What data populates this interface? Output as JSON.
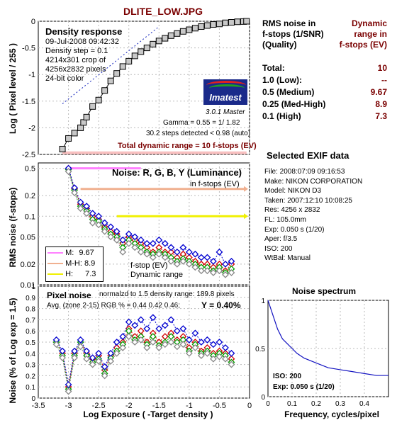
{
  "title": "DLITE_LOW.JPG",
  "colors": {
    "title": "#7a0000",
    "marker_gray": "#808080",
    "red": "#d00000",
    "green": "#00a000",
    "blue": "#0000d0",
    "pink": "#ff80ff",
    "peach": "#f0b090",
    "yellow": "#f0f000",
    "spectrum": "#1010c0"
  },
  "density": {
    "box_title": "Density response",
    "info_lines": [
      "09-Jul-2008 09:42:32",
      "Density step = 0.1",
      "4214x301 crop of",
      "4256x2832 pixels",
      "24-bit color"
    ],
    "logo_text": "Imatest",
    "version": "3.0.1  Master",
    "gamma": "Gamma = 0.55 = 1/ 1.82",
    "steps": "30.2 steps detected < 0.98 (auto)",
    "total_range": "Total dynamic range = 10 f-stops (EV)",
    "ylabel": "Log ( Pixel level / 255 )",
    "yticks": [
      "0",
      "-0.5",
      "-1",
      "-1.5",
      "-2",
      "-2.5"
    ]
  },
  "noise_fstops": {
    "box_title": "Noise: R, G, B, Y (Luminance)",
    "sub": "in f-stops (EV)",
    "ylabel": "RMS noise (f-stops)",
    "yticks": [
      "0.5",
      "0.2",
      "0.1",
      "0.05",
      "0.02",
      "0.01"
    ],
    "legend": [
      {
        "label": "M:",
        "value": "9.67"
      },
      {
        "label": "M-H:",
        "value": "8.9"
      },
      {
        "label": "H:",
        "value": "7.3"
      }
    ],
    "annot_1": "f-stop (EV)",
    "annot_2": "Dynamic range"
  },
  "pixel_noise": {
    "box_title": "Pixel noise",
    "norm": "normalzd to 1.5 density range: 189.8 pixels",
    "avg": "Avg. (zone 2-15) RGB % = 0.44  0.42  0.46;",
    "y_value": "Y = 0.40%",
    "ylabel": "Noise (% of Log exp = 1.5)",
    "yticks": [
      "1",
      "0.9",
      "0.8",
      "0.7",
      "0.6",
      "0.5",
      "0.4",
      "0.3",
      "0.2",
      "0.1",
      "0"
    ],
    "xlabel": "Log Exposure  ( -Target density )",
    "xticks": [
      "-3.5",
      "-3",
      "-2.5",
      "-2",
      "-1.5",
      "-1",
      "-0.5",
      "0"
    ]
  },
  "right_panel": {
    "h_left": [
      "RMS noise in",
      "f-stops (1/SNR)",
      "(Quality)"
    ],
    "h_right": [
      "Dynamic",
      "range in",
      "f-stops (EV)"
    ],
    "rows": [
      {
        "label": "Total:",
        "value": "10"
      },
      {
        "label": "1.0   (Low):",
        "value": "--"
      },
      {
        "label": "0.5   (Medium)",
        "value": "9.67"
      },
      {
        "label": "0.25 (Med-High)",
        "value": "8.9"
      },
      {
        "label": "0.1   (High)",
        "value": "7.3"
      }
    ]
  },
  "exif": {
    "title": "Selected EXIF data",
    "lines": [
      "File:  2008:07:09 09:16:53",
      "Make:  NIKON CORPORATION",
      "Model: NIKON D3",
      "Taken: 2007:12:10 10:08:25",
      "Res:    4256 x 2832",
      "FL:   105.0mm",
      "Exp:   0.050 s  (1/20)",
      "Aper:  f/3.5",
      "ISO:   200",
      "WtBal:  Manual"
    ]
  },
  "spectrum": {
    "title": "Noise spectrum",
    "xlabel": "Frequency, cycles/pixel",
    "yticks": [
      "1",
      "0.5",
      "0"
    ],
    "xticks": [
      "0",
      "0.1",
      "0.2",
      "0.3",
      "0.4"
    ],
    "iso": "ISO:   200",
    "exp": "Exp:  0.050 s  (1/20)"
  },
  "chart_data": [
    {
      "type": "scatter",
      "title": "Density response",
      "ylabel": "Log ( Pixel level / 255 )",
      "ylim": [
        -2.5,
        0
      ],
      "xlim": [
        -3.5,
        0
      ],
      "grid": true,
      "series": [
        {
          "x": [
            -3.1,
            -3.0,
            -2.9,
            -2.8,
            -2.75,
            -2.7,
            -2.6,
            -2.5,
            -2.4,
            -2.3,
            -2.2,
            -2.1,
            -2.0,
            -1.9,
            -1.8,
            -1.7,
            -1.6,
            -1.5,
            -1.4,
            -1.3,
            -1.2,
            -1.1,
            -1.0,
            -0.9,
            -0.8,
            -0.7,
            -0.6,
            -0.5,
            -0.4,
            -0.3,
            -0.2,
            -0.1,
            -0.05
          ],
          "values": [
            -2.4,
            -2.2,
            -2.1,
            -2.0,
            -1.9,
            -1.8,
            -1.6,
            -1.48,
            -1.3,
            -1.12,
            -0.98,
            -0.85,
            -0.75,
            -0.65,
            -0.57,
            -0.5,
            -0.43,
            -0.37,
            -0.32,
            -0.27,
            -0.23,
            -0.19,
            -0.16,
            -0.13,
            -0.1,
            -0.08,
            -0.06,
            -0.05,
            -0.03,
            -0.02,
            -0.01,
            -0.005,
            0
          ]
        }
      ]
    },
    {
      "type": "line",
      "title": "Noise: R, G, B, Y (Luminance)",
      "ylabel": "RMS noise (f-stops)",
      "ylim": [
        0.01,
        0.6
      ],
      "yscale": "log",
      "grid": true,
      "x": [
        -3.0,
        -2.9,
        -2.8,
        -2.7,
        -2.6,
        -2.5,
        -2.4,
        -2.3,
        -2.2,
        -2.1,
        -2.0,
        -1.9,
        -1.8,
        -1.7,
        -1.6,
        -1.5,
        -1.4,
        -1.3,
        -1.2,
        -1.1,
        -1.0,
        -0.9,
        -0.8,
        -0.7,
        -0.6,
        -0.5,
        -0.4,
        -0.3
      ],
      "series": [
        {
          "values": [
            0.5,
            0.25,
            0.15,
            0.13,
            0.1,
            0.09,
            0.07,
            0.06,
            0.055,
            0.04,
            0.05,
            0.045,
            0.04,
            0.035,
            0.03,
            0.035,
            0.03,
            0.03,
            0.025,
            0.028,
            0.025,
            0.022,
            0.02,
            0.02,
            0.018,
            0.02,
            0.016,
            0.02
          ]
        },
        {
          "values": [
            0.48,
            0.24,
            0.14,
            0.12,
            0.09,
            0.085,
            0.065,
            0.055,
            0.05,
            0.035,
            0.045,
            0.04,
            0.035,
            0.03,
            0.028,
            0.03,
            0.028,
            0.025,
            0.022,
            0.024,
            0.022,
            0.02,
            0.018,
            0.018,
            0.016,
            0.018,
            0.015,
            0.017
          ]
        },
        {
          "values": [
            0.5,
            0.26,
            0.16,
            0.14,
            0.11,
            0.1,
            0.08,
            0.07,
            0.06,
            0.045,
            0.055,
            0.05,
            0.045,
            0.04,
            0.04,
            0.045,
            0.04,
            0.035,
            0.03,
            0.035,
            0.03,
            0.028,
            0.025,
            0.025,
            0.022,
            0.03,
            0.02,
            0.022
          ]
        },
        {
          "values": [
            0.45,
            0.22,
            0.13,
            0.11,
            0.08,
            0.075,
            0.06,
            0.05,
            0.045,
            0.03,
            0.04,
            0.035,
            0.03,
            0.028,
            0.025,
            0.028,
            0.025,
            0.022,
            0.02,
            0.022,
            0.02,
            0.018,
            0.016,
            0.016,
            0.015,
            0.016,
            0.014,
            0.015
          ]
        }
      ],
      "reference_lines": [
        {
          "label": "M:",
          "value": 0.5,
          "range": "9.67"
        },
        {
          "label": "M-H:",
          "value": 0.25,
          "range": "8.9"
        },
        {
          "label": "H:",
          "value": 0.1,
          "range": "7.3"
        }
      ]
    },
    {
      "type": "line",
      "title": "Pixel noise",
      "xlabel": "Log Exposure  ( -Target density )",
      "ylabel": "Noise (% of Log exp = 1.5)",
      "ylim": [
        0,
        1
      ],
      "xlim": [
        -3.5,
        0
      ],
      "grid": true,
      "x": [
        -3.2,
        -3.1,
        -3.0,
        -2.9,
        -2.8,
        -2.7,
        -2.6,
        -2.5,
        -2.4,
        -2.3,
        -2.2,
        -2.1,
        -2.0,
        -1.9,
        -1.8,
        -1.7,
        -1.6,
        -1.5,
        -1.4,
        -1.3,
        -1.2,
        -1.1,
        -1.0,
        -0.9,
        -0.8,
        -0.7,
        -0.6,
        -0.5,
        -0.4,
        -0.3
      ],
      "series": [
        {
          "values": [
            0.5,
            0.4,
            0.1,
            0.4,
            0.5,
            0.4,
            0.35,
            0.38,
            0.25,
            0.38,
            0.45,
            0.5,
            0.62,
            0.55,
            0.6,
            0.5,
            0.58,
            0.5,
            0.55,
            0.58,
            0.52,
            0.55,
            0.45,
            0.5,
            0.42,
            0.45,
            0.4,
            0.42,
            0.4,
            0.35
          ]
        },
        {
          "values": [
            0.5,
            0.38,
            0.08,
            0.38,
            0.5,
            0.38,
            0.32,
            0.35,
            0.22,
            0.36,
            0.42,
            0.48,
            0.6,
            0.52,
            0.55,
            0.48,
            0.55,
            0.47,
            0.5,
            0.55,
            0.5,
            0.52,
            0.42,
            0.48,
            0.4,
            0.42,
            0.38,
            0.4,
            0.38,
            0.32
          ]
        },
        {
          "values": [
            0.52,
            0.42,
            0.12,
            0.42,
            0.52,
            0.42,
            0.36,
            0.4,
            0.28,
            0.4,
            0.5,
            0.55,
            0.68,
            0.65,
            0.7,
            0.62,
            0.72,
            0.62,
            0.65,
            0.7,
            0.6,
            0.62,
            0.52,
            0.58,
            0.5,
            0.52,
            0.48,
            0.5,
            0.45,
            0.4
          ]
        },
        {
          "values": [
            0.48,
            0.36,
            0.06,
            0.36,
            0.46,
            0.35,
            0.3,
            0.33,
            0.2,
            0.33,
            0.4,
            0.45,
            0.55,
            0.5,
            0.52,
            0.45,
            0.5,
            0.45,
            0.48,
            0.5,
            0.46,
            0.48,
            0.4,
            0.45,
            0.38,
            0.4,
            0.35,
            0.37,
            0.35,
            0.3
          ]
        }
      ]
    },
    {
      "type": "line",
      "title": "Noise spectrum",
      "xlabel": "Frequency, cycles/pixel",
      "xlim": [
        0,
        0.5
      ],
      "ylim": [
        0,
        1
      ],
      "grid": true,
      "series": [
        {
          "x": [
            0,
            0.02,
            0.04,
            0.06,
            0.08,
            0.1,
            0.12,
            0.15,
            0.2,
            0.25,
            0.3,
            0.35,
            0.4,
            0.45,
            0.5
          ],
          "values": [
            1.0,
            0.85,
            0.7,
            0.6,
            0.55,
            0.5,
            0.45,
            0.4,
            0.35,
            0.3,
            0.28,
            0.26,
            0.24,
            0.22,
            0.22
          ]
        }
      ]
    }
  ]
}
